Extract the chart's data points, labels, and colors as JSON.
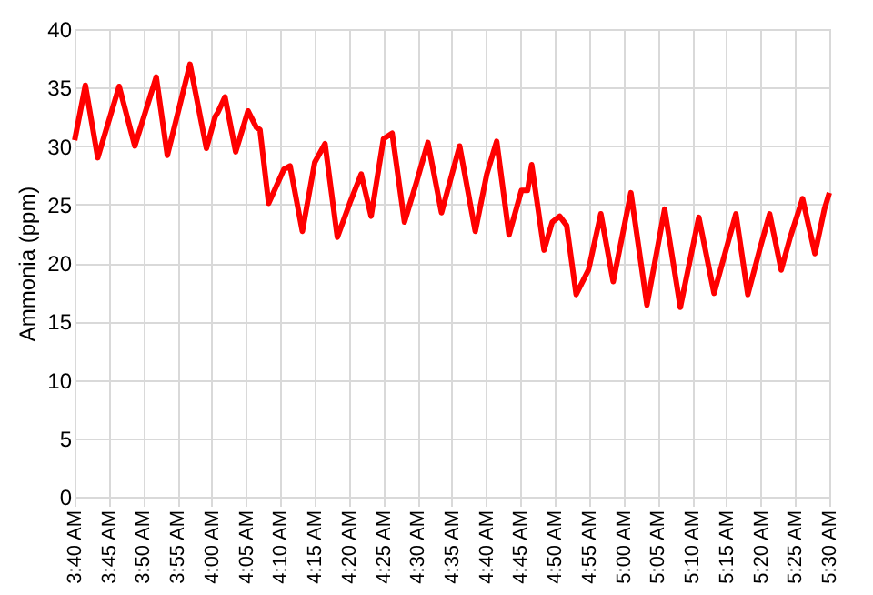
{
  "chart_data": {
    "type": "line",
    "ylabel": "Ammonia (ppm)",
    "grid": true,
    "marker": "none",
    "line_style": "solid",
    "xlim": [
      3.6667,
      5.5
    ],
    "ylim": [
      0,
      40
    ],
    "yticks": [
      0,
      5,
      10,
      15,
      20,
      25,
      30,
      35,
      40
    ],
    "xticks": [
      {
        "value": 3.6667,
        "label": "3:40 AM"
      },
      {
        "value": 3.75,
        "label": "3:45 AM"
      },
      {
        "value": 3.8333,
        "label": "3:50 AM"
      },
      {
        "value": 3.9167,
        "label": "3:55 AM"
      },
      {
        "value": 4.0,
        "label": "4:00 AM"
      },
      {
        "value": 4.0833,
        "label": "4:05 AM"
      },
      {
        "value": 4.1667,
        "label": "4:10 AM"
      },
      {
        "value": 4.25,
        "label": "4:15 AM"
      },
      {
        "value": 4.3333,
        "label": "4:20 AM"
      },
      {
        "value": 4.4167,
        "label": "4:25 AM"
      },
      {
        "value": 4.5,
        "label": "4:30 AM"
      },
      {
        "value": 4.5833,
        "label": "4:35 AM"
      },
      {
        "value": 4.6667,
        "label": "4:40 AM"
      },
      {
        "value": 4.75,
        "label": "4:45 AM"
      },
      {
        "value": 4.8333,
        "label": "4:50 AM"
      },
      {
        "value": 4.9167,
        "label": "4:55 AM"
      },
      {
        "value": 5.0,
        "label": "5:00 AM"
      },
      {
        "value": 5.0833,
        "label": "5:05 AM"
      },
      {
        "value": 5.1667,
        "label": "5:10 AM"
      },
      {
        "value": 5.25,
        "label": "5:15 AM"
      },
      {
        "value": 5.3333,
        "label": "5:20 AM"
      },
      {
        "value": 5.4167,
        "label": "5:25 AM"
      },
      {
        "value": 5.5,
        "label": "5:30 AM"
      }
    ],
    "x": [
      3.667,
      3.693,
      3.723,
      3.775,
      3.813,
      3.865,
      3.892,
      3.947,
      3.987,
      4.008,
      4.015,
      4.032,
      4.058,
      4.088,
      4.108,
      4.117,
      4.138,
      4.175,
      4.19,
      4.22,
      4.25,
      4.275,
      4.305,
      4.335,
      4.363,
      4.387,
      4.417,
      4.438,
      4.468,
      4.498,
      4.525,
      4.558,
      4.602,
      4.64,
      4.668,
      4.692,
      4.722,
      4.752,
      4.767,
      4.777,
      4.807,
      4.827,
      4.845,
      4.862,
      4.885,
      4.915,
      4.945,
      4.975,
      5.018,
      5.057,
      5.1,
      5.138,
      5.183,
      5.22,
      5.273,
      5.302,
      5.332,
      5.355,
      5.383,
      5.405,
      5.435,
      5.465,
      5.488,
      5.5
    ],
    "series": [
      {
        "color": "#ff0000",
        "values": [
          30.5,
          35.2,
          29,
          35.1,
          30,
          35.9,
          29.2,
          37,
          29.8,
          32.5,
          32.9,
          34.2,
          29.5,
          33,
          31.6,
          31.4,
          25.1,
          28,
          28.3,
          22.7,
          28.6,
          30.2,
          22.2,
          25.1,
          27.6,
          24,
          30.6,
          31.1,
          23.5,
          27,
          30.3,
          24.3,
          30,
          22.7,
          27.6,
          30.4,
          22.4,
          26.2,
          26.2,
          28.4,
          21.1,
          23.5,
          24,
          23.2,
          17.3,
          19.4,
          24.2,
          18.4,
          26,
          16.4,
          24.6,
          16.2,
          23.9,
          17.4,
          24.2,
          17.3,
          21.3,
          24.2,
          19.4,
          22.2,
          25.5,
          20.8,
          24.6,
          26
        ]
      }
    ]
  }
}
